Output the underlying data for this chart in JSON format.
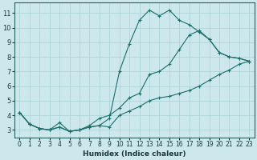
{
  "xlabel": "Humidex (Indice chaleur)",
  "xlim": [
    -0.5,
    23.5
  ],
  "ylim": [
    2.5,
    11.7
  ],
  "xticks": [
    0,
    1,
    2,
    3,
    4,
    5,
    6,
    7,
    8,
    9,
    10,
    11,
    12,
    13,
    14,
    15,
    16,
    17,
    18,
    19,
    20,
    21,
    22,
    23
  ],
  "yticks": [
    3,
    4,
    5,
    6,
    7,
    8,
    9,
    10,
    11
  ],
  "background_color": "#cce8ec",
  "grid_color": "#b0d4d8",
  "line_color": "#1a6e6a",
  "line1_x": [
    0,
    1,
    2,
    3,
    4,
    5,
    6,
    7,
    8,
    9,
    10,
    11,
    12,
    13,
    14,
    15,
    16,
    17,
    18,
    19,
    20,
    21,
    22,
    23
  ],
  "line1_y": [
    4.2,
    3.4,
    3.1,
    3.0,
    3.2,
    2.9,
    3.0,
    3.2,
    3.3,
    3.2,
    4.0,
    4.3,
    4.6,
    5.0,
    5.2,
    5.3,
    5.5,
    5.7,
    6.0,
    6.4,
    6.8,
    7.1,
    7.5,
    7.7
  ],
  "line2_x": [
    0,
    1,
    2,
    3,
    4,
    5,
    6,
    7,
    8,
    9,
    10,
    11,
    12,
    13,
    14,
    15,
    16,
    17,
    18,
    19,
    20,
    21,
    22,
    23
  ],
  "line2_y": [
    4.2,
    3.4,
    3.1,
    3.0,
    3.2,
    2.9,
    3.0,
    3.2,
    3.3,
    3.8,
    7.0,
    8.9,
    10.5,
    11.2,
    10.8,
    11.2,
    10.5,
    10.2,
    9.7,
    9.2,
    8.3,
    8.0,
    7.9,
    7.7
  ],
  "line3_x": [
    0,
    1,
    2,
    3,
    4,
    5,
    6,
    7,
    8,
    9,
    10,
    11,
    12,
    13,
    14,
    15,
    16,
    17,
    18,
    19,
    20,
    21,
    22,
    23
  ],
  "line3_y": [
    4.2,
    3.4,
    3.1,
    3.0,
    3.5,
    2.9,
    3.0,
    3.3,
    3.8,
    4.0,
    4.5,
    5.2,
    5.5,
    6.8,
    7.0,
    7.5,
    8.5,
    9.5,
    9.8,
    9.2,
    8.3,
    8.0,
    7.9,
    7.7
  ]
}
